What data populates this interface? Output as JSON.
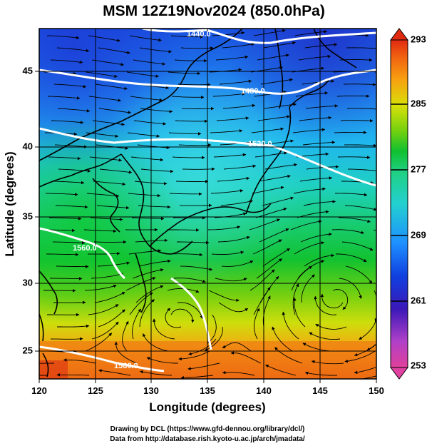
{
  "title": "MSM 12Z19Nov2024 (850.0hPa)",
  "axes": {
    "xlabel": "Longitude (degrees)",
    "ylabel": "Latitude  (degrees)",
    "x_ticks": [
      "120",
      "125",
      "130",
      "135",
      "140",
      "145",
      "150"
    ],
    "y_ticks": [
      "25",
      "30",
      "35",
      "40",
      "45"
    ],
    "xlim": [
      120,
      150
    ],
    "ylim": [
      22.4,
      47.6
    ]
  },
  "colorbar": {
    "labels": [
      "293",
      "285",
      "277",
      "269",
      "261",
      "253"
    ],
    "range": [
      253,
      293
    ],
    "colors": [
      "#e0409a",
      "#b040c8",
      "#3a18b8",
      "#1040e0",
      "#1e90ff",
      "#22d0d0",
      "#1fd080",
      "#10c030",
      "#70d010",
      "#d8e008",
      "#f8a010",
      "#f06010",
      "#e02a10"
    ]
  },
  "contours": {
    "quantity": "geopotential height",
    "labels": [
      "1440.0",
      "1480.0",
      "1520.0",
      "1560.0",
      "1560.0"
    ]
  },
  "credits": {
    "line1": "Drawing by DCL (https://www.gfd-dennou.org/library/dcl/)",
    "line2": "Data from http://database.rish.kyoto-u.ac.jp/arch/jmadata/"
  }
}
